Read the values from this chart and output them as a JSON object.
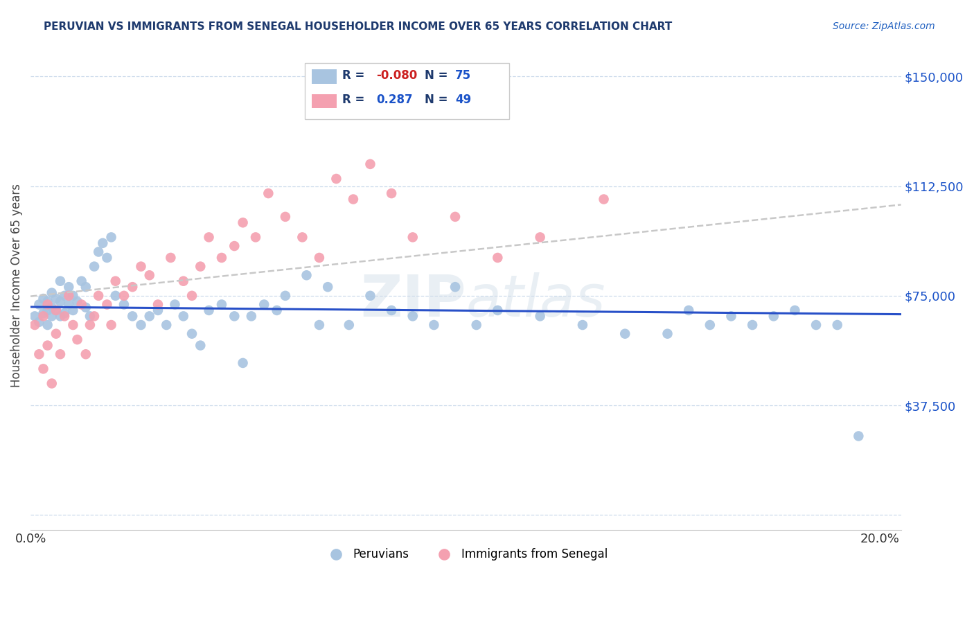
{
  "title": "PERUVIAN VS IMMIGRANTS FROM SENEGAL HOUSEHOLDER INCOME OVER 65 YEARS CORRELATION CHART",
  "source": "Source: ZipAtlas.com",
  "ylabel": "Householder Income Over 65 years",
  "xlim": [
    0.0,
    0.205
  ],
  "ylim": [
    -5000,
    162000
  ],
  "ytick_vals": [
    0,
    37500,
    75000,
    112500,
    150000
  ],
  "ytick_labels": [
    "",
    "$37,500",
    "$75,000",
    "$112,500",
    "$150,000"
  ],
  "xtick_vals": [
    0.0,
    0.2
  ],
  "xtick_labels": [
    "0.0%",
    "20.0%"
  ],
  "r_peruvian": -0.08,
  "n_peruvian": 75,
  "r_senegal": 0.287,
  "n_senegal": 49,
  "peruvian_color": "#a8c4e0",
  "senegal_color": "#f4a0b0",
  "trendline_peruvian_color": "#2850c8",
  "trendline_senegal_color": "#c8c8c8",
  "peruvian_x": [
    0.001,
    0.002,
    0.002,
    0.003,
    0.003,
    0.004,
    0.004,
    0.004,
    0.005,
    0.005,
    0.005,
    0.006,
    0.006,
    0.007,
    0.007,
    0.007,
    0.008,
    0.008,
    0.009,
    0.009,
    0.01,
    0.01,
    0.011,
    0.012,
    0.013,
    0.013,
    0.014,
    0.015,
    0.016,
    0.017,
    0.018,
    0.019,
    0.02,
    0.022,
    0.024,
    0.026,
    0.028,
    0.03,
    0.032,
    0.034,
    0.036,
    0.038,
    0.04,
    0.042,
    0.045,
    0.048,
    0.05,
    0.052,
    0.055,
    0.058,
    0.06,
    0.065,
    0.068,
    0.07,
    0.075,
    0.08,
    0.085,
    0.09,
    0.095,
    0.1,
    0.105,
    0.11,
    0.12,
    0.13,
    0.14,
    0.15,
    0.155,
    0.16,
    0.165,
    0.17,
    0.175,
    0.18,
    0.185,
    0.19,
    0.195
  ],
  "peruvian_y": [
    68000,
    72000,
    66000,
    69000,
    74000,
    70000,
    73000,
    65000,
    71000,
    76000,
    68000,
    74000,
    70000,
    80000,
    73000,
    68000,
    75000,
    69000,
    72000,
    78000,
    70000,
    75000,
    73000,
    80000,
    78000,
    71000,
    68000,
    85000,
    90000,
    93000,
    88000,
    95000,
    75000,
    72000,
    68000,
    65000,
    68000,
    70000,
    65000,
    72000,
    68000,
    62000,
    58000,
    70000,
    72000,
    68000,
    52000,
    68000,
    72000,
    70000,
    75000,
    82000,
    65000,
    78000,
    65000,
    75000,
    70000,
    68000,
    65000,
    78000,
    65000,
    70000,
    68000,
    65000,
    62000,
    62000,
    70000,
    65000,
    68000,
    65000,
    68000,
    70000,
    65000,
    65000,
    27000
  ],
  "senegal_x": [
    0.001,
    0.002,
    0.003,
    0.003,
    0.004,
    0.004,
    0.005,
    0.006,
    0.006,
    0.007,
    0.008,
    0.009,
    0.01,
    0.011,
    0.012,
    0.013,
    0.014,
    0.015,
    0.016,
    0.018,
    0.019,
    0.02,
    0.022,
    0.024,
    0.026,
    0.028,
    0.03,
    0.033,
    0.036,
    0.038,
    0.04,
    0.042,
    0.045,
    0.048,
    0.05,
    0.053,
    0.056,
    0.06,
    0.064,
    0.068,
    0.072,
    0.076,
    0.08,
    0.085,
    0.09,
    0.1,
    0.11,
    0.12,
    0.135
  ],
  "senegal_y": [
    65000,
    55000,
    50000,
    68000,
    72000,
    58000,
    45000,
    62000,
    70000,
    55000,
    68000,
    75000,
    65000,
    60000,
    72000,
    55000,
    65000,
    68000,
    75000,
    72000,
    65000,
    80000,
    75000,
    78000,
    85000,
    82000,
    72000,
    88000,
    80000,
    75000,
    85000,
    95000,
    88000,
    92000,
    100000,
    95000,
    110000,
    102000,
    95000,
    88000,
    115000,
    108000,
    120000,
    110000,
    95000,
    102000,
    88000,
    95000,
    108000
  ]
}
